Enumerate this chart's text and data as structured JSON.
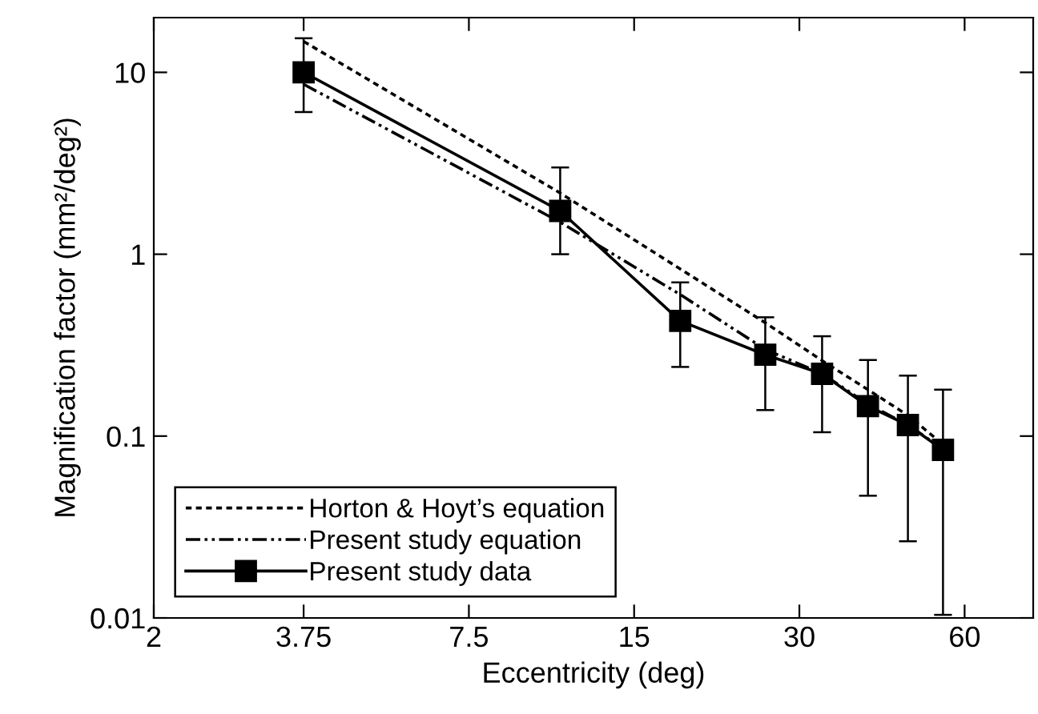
{
  "chart_data": {
    "type": "line",
    "xlabel": "Eccentricity (deg)",
    "ylabel": "Magnification factor (mm²/deg²)",
    "log": "xy",
    "xlim": [
      2,
      80
    ],
    "xticks": [
      2,
      3.75,
      7.5,
      15,
      30,
      60
    ],
    "ylim": [
      0.01,
      20
    ],
    "yticks": [
      0.01,
      0.1,
      1,
      10
    ],
    "grid": false,
    "legend": "bottom left",
    "series": [
      {
        "name": "Horton & Hoyt’s equation",
        "color": "#000000",
        "line_style": "dotted",
        "marker": "none",
        "x": [
          3.75,
          11,
          18.2,
          26,
          33,
          40,
          47.3,
          54.8
        ],
        "values": [
          14.8,
          2.17,
          0.83,
          0.42,
          0.26,
          0.18,
          0.13,
          0.09
        ]
      },
      {
        "name": "Present study equation",
        "color": "#000000",
        "line_style": "dashdot",
        "marker": "none",
        "x": [
          3.75,
          11,
          18.2,
          26,
          33,
          40,
          47.3,
          54.8
        ],
        "values": [
          8.6,
          1.5,
          0.6,
          0.3,
          0.22,
          0.15,
          0.115,
          0.085
        ]
      },
      {
        "name": "Present study data",
        "color": "#000000",
        "line_style": "solid",
        "marker": "square",
        "x": [
          3.75,
          11,
          18.2,
          26,
          33,
          40,
          47.3,
          54.8
        ],
        "values": [
          10,
          1.73,
          0.43,
          0.28,
          0.22,
          0.146,
          0.115,
          0.084
        ],
        "errors": [
          [
            6.05,
            15.4
          ],
          [
            1.0,
            3.0
          ],
          [
            0.24,
            0.7
          ],
          [
            0.139,
            0.45
          ],
          [
            0.105,
            0.354
          ],
          [
            0.047,
            0.262
          ],
          [
            0.0264,
            0.215
          ],
          [
            0.0104,
            0.18
          ]
        ]
      }
    ]
  }
}
